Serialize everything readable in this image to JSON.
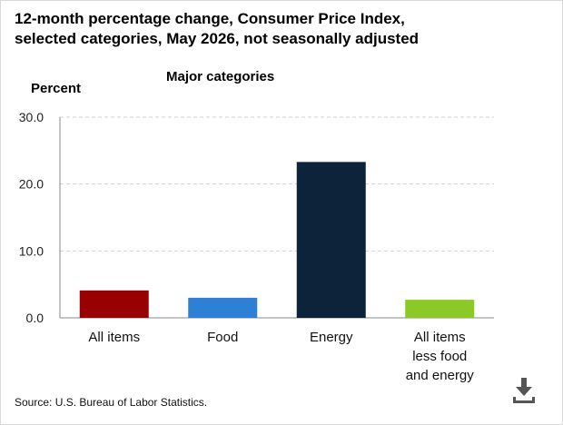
{
  "title_lines": [
    "12-month percentage change, Consumer Price Index,",
    "selected categories, May 2026, not seasonally adjusted"
  ],
  "source": "Source: U.S. Bureau of Labor Statistics.",
  "download_icon": "download-icon",
  "chart_data": {
    "type": "bar",
    "title": "Major categories",
    "ylabel": "Percent",
    "xlabel": "",
    "ylim": [
      0,
      30
    ],
    "yticks": [
      "0.0",
      "10.0",
      "20.0",
      "30.0"
    ],
    "grid": true,
    "categories": [
      [
        "All items"
      ],
      [
        "Food"
      ],
      [
        "Energy"
      ],
      [
        "All items",
        "less food",
        "and energy"
      ]
    ],
    "values": [
      4.1,
      3.0,
      23.3,
      2.7
    ],
    "colors": [
      "#990000",
      "#2e7fd6",
      "#0d233a",
      "#8ac926"
    ]
  }
}
